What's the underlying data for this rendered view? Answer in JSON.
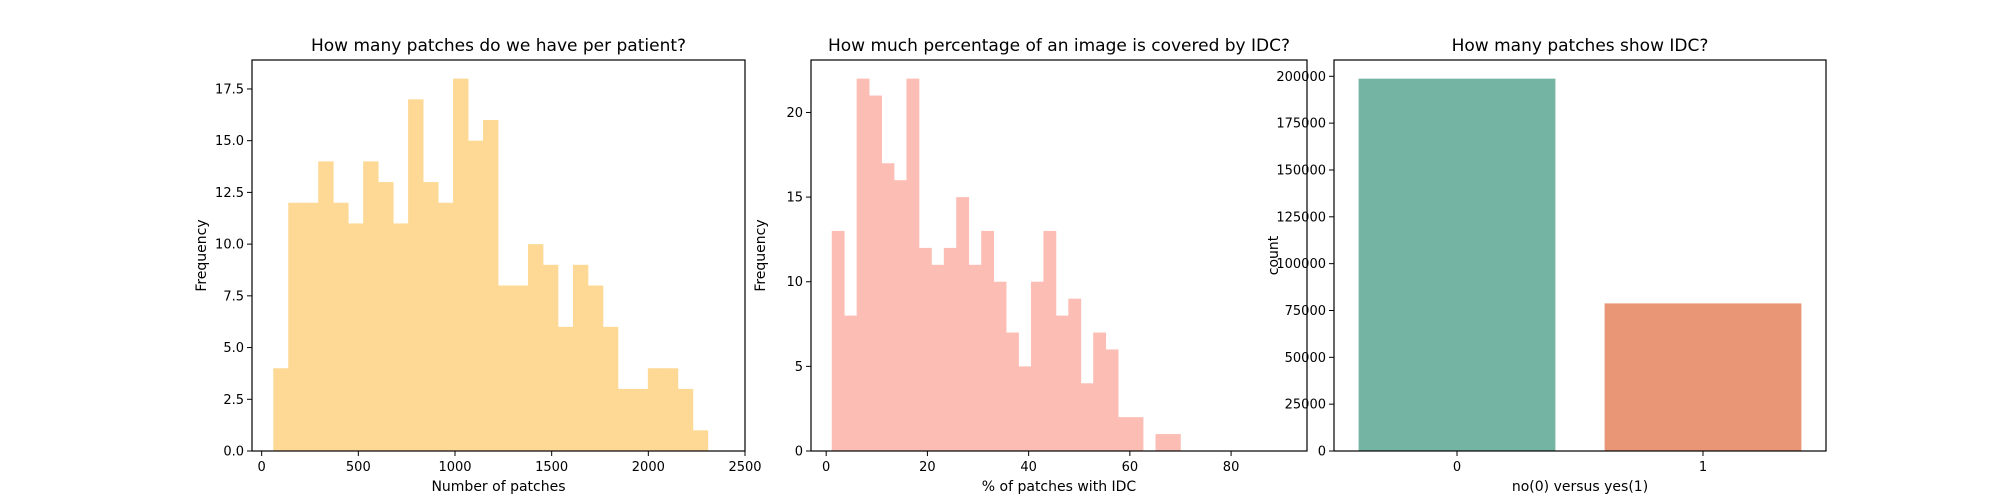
{
  "chart_data": [
    {
      "type": "histogram",
      "title": "How many patches do we have per patient?",
      "xlabel": "Number of patches",
      "ylabel": "Frequency",
      "xlim": [
        -50,
        2500
      ],
      "ylim": [
        0,
        18.9
      ],
      "xticks": [
        0,
        500,
        1000,
        1500,
        2000,
        2500
      ],
      "yticks": [
        0.0,
        2.5,
        5.0,
        7.5,
        10.0,
        12.5,
        15.0,
        17.5
      ],
      "ytick_labels": [
        "0.0",
        "2.5",
        "5.0",
        "7.5",
        "10.0",
        "12.5",
        "15.0",
        "17.5"
      ],
      "bin_start": 60,
      "bin_width": 77.5,
      "counts": [
        4,
        12,
        12,
        14,
        12,
        11,
        14,
        13,
        11,
        17,
        13,
        12,
        18,
        15,
        16,
        8,
        8,
        10,
        9,
        6,
        9,
        8,
        6,
        3,
        3,
        4,
        4,
        3,
        1
      ],
      "color": "#fdd995"
    },
    {
      "type": "histogram",
      "title": "How much percentage of an image is covered by IDC?",
      "xlabel": "% of patches with IDC",
      "ylabel": "Frequency",
      "xlim": [
        -3,
        95
      ],
      "ylim": [
        0,
        23.1
      ],
      "xticks": [
        0,
        20,
        40,
        60,
        80
      ],
      "yticks": [
        0,
        5,
        10,
        15,
        20
      ],
      "ytick_labels": [
        "0",
        "5",
        "10",
        "15",
        "20"
      ],
      "bin_start": 1.1,
      "bin_width": 2.46,
      "counts": [
        13,
        8,
        22,
        21,
        17,
        16,
        22,
        12,
        11,
        12,
        15,
        11,
        13,
        10,
        7,
        5,
        10,
        13,
        8,
        9,
        4,
        7,
        6,
        2,
        2,
        0,
        1,
        1
      ],
      "color": "#fcbeb4"
    },
    {
      "type": "bar",
      "title": "How many patches show IDC?",
      "xlabel": "no(0) versus yes(1)",
      "ylabel": "count",
      "categories": [
        "0",
        "1"
      ],
      "values": [
        198738,
        78786
      ],
      "ylim": [
        0,
        208700
      ],
      "yticks": [
        0,
        25000,
        50000,
        75000,
        100000,
        125000,
        150000,
        175000,
        200000
      ],
      "ytick_labels": [
        "0",
        "25000",
        "50000",
        "75000",
        "100000",
        "125000",
        "150000",
        "175000",
        "200000"
      ],
      "colors": [
        "#73b5a2",
        "#e89676"
      ]
    }
  ]
}
